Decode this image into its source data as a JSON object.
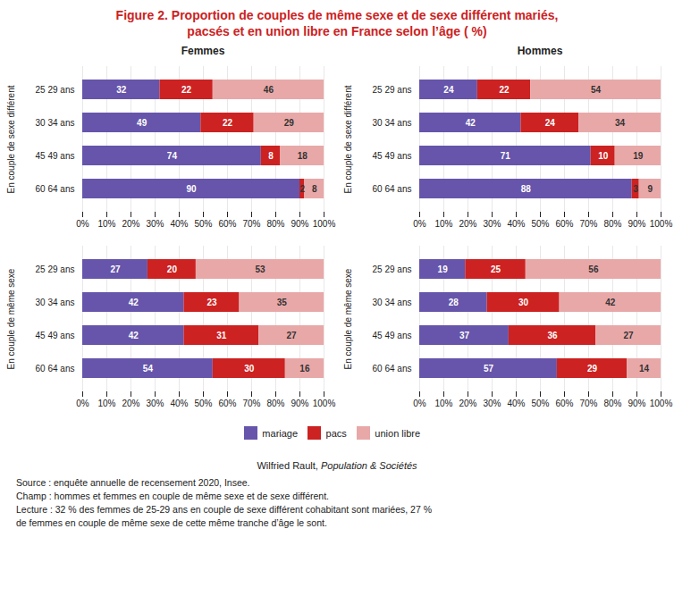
{
  "title": "Figure 2. Proportion de couples de même sexe et de sexe différent mariés,\npacsés et en union libre en France selon l’âge ( %)",
  "chart_data": [
    {
      "type": "bar",
      "orientation": "horizontal",
      "stacked": true,
      "title": "Femmes",
      "ylabel": "En couple de sexe différent",
      "categories": [
        "25 29 ans",
        "30 34 ans",
        "45 49 ans",
        "60 64 ans"
      ],
      "series": [
        {
          "name": "mariage",
          "color": "#6655aa",
          "values": [
            32,
            49,
            74,
            90
          ]
        },
        {
          "name": "pacs",
          "color": "#cc2222",
          "values": [
            22,
            22,
            8,
            2
          ]
        },
        {
          "name": "union libre",
          "color": "#e8a8a8",
          "values": [
            46,
            29,
            18,
            8
          ]
        }
      ],
      "xlim": [
        0,
        100
      ],
      "xticks": [
        {
          "value": 0,
          "label": "0%"
        },
        {
          "value": 10,
          "label": "10%"
        },
        {
          "value": 20,
          "label": "20%"
        },
        {
          "value": 30,
          "label": "30%"
        },
        {
          "value": 40,
          "label": "40%"
        },
        {
          "value": 50,
          "label": "50%"
        },
        {
          "value": 60,
          "label": "60%"
        },
        {
          "value": 70,
          "label": "70%"
        },
        {
          "value": 80,
          "label": "80%"
        },
        {
          "value": 90,
          "label": "90%"
        },
        {
          "value": 100,
          "label": "100%"
        }
      ],
      "grid": true,
      "data_labels": true
    },
    {
      "type": "bar",
      "orientation": "horizontal",
      "stacked": true,
      "title": "Hommes",
      "ylabel": "En couple de sexe différent",
      "categories": [
        "25 29 ans",
        "30 34 ans",
        "45 49 ans",
        "60 64 ans"
      ],
      "series": [
        {
          "name": "mariage",
          "color": "#6655aa",
          "values": [
            24,
            42,
            71,
            88
          ]
        },
        {
          "name": "pacs",
          "color": "#cc2222",
          "values": [
            22,
            24,
            10,
            3
          ]
        },
        {
          "name": "union libre",
          "color": "#e8a8a8",
          "values": [
            54,
            34,
            19,
            9
          ]
        }
      ],
      "xlim": [
        0,
        100
      ],
      "xticks": [
        {
          "value": 0,
          "label": "0%"
        },
        {
          "value": 10,
          "label": "10%"
        },
        {
          "value": 20,
          "label": "20%"
        },
        {
          "value": 30,
          "label": "30%"
        },
        {
          "value": 40,
          "label": "40%"
        },
        {
          "value": 50,
          "label": "50%"
        },
        {
          "value": 60,
          "label": "60%"
        },
        {
          "value": 70,
          "label": "70%"
        },
        {
          "value": 80,
          "label": "80%"
        },
        {
          "value": 90,
          "label": "90%"
        },
        {
          "value": 100,
          "label": "100%"
        }
      ],
      "grid": true,
      "data_labels": true
    },
    {
      "type": "bar",
      "orientation": "horizontal",
      "stacked": true,
      "ylabel": "En couple de même sexe",
      "categories": [
        "25 29 ans",
        "30 34 ans",
        "45 49 ans",
        "60 64 ans"
      ],
      "series": [
        {
          "name": "mariage",
          "color": "#6655aa",
          "values": [
            27,
            42,
            42,
            54
          ]
        },
        {
          "name": "pacs",
          "color": "#cc2222",
          "values": [
            20,
            23,
            31,
            30
          ]
        },
        {
          "name": "union libre",
          "color": "#e8a8a8",
          "values": [
            53,
            35,
            27,
            16
          ]
        }
      ],
      "xlim": [
        0,
        100
      ],
      "xticks": [
        {
          "value": 0,
          "label": "0%"
        },
        {
          "value": 10,
          "label": "10%"
        },
        {
          "value": 20,
          "label": "20%"
        },
        {
          "value": 30,
          "label": "30%"
        },
        {
          "value": 40,
          "label": "40%"
        },
        {
          "value": 50,
          "label": "50%"
        },
        {
          "value": 60,
          "label": "60%"
        },
        {
          "value": 70,
          "label": "70%"
        },
        {
          "value": 80,
          "label": "80%"
        },
        {
          "value": 90,
          "label": "90%"
        },
        {
          "value": 100,
          "label": "100%"
        }
      ],
      "grid": true,
      "data_labels": true
    },
    {
      "type": "bar",
      "orientation": "horizontal",
      "stacked": true,
      "ylabel": "En couple de même sexe",
      "categories": [
        "25 29 ans",
        "30 34 ans",
        "45 49 ans",
        "60 64 ans"
      ],
      "series": [
        {
          "name": "mariage",
          "color": "#6655aa",
          "values": [
            19,
            28,
            37,
            57
          ]
        },
        {
          "name": "pacs",
          "color": "#cc2222",
          "values": [
            25,
            30,
            36,
            29
          ]
        },
        {
          "name": "union libre",
          "color": "#e8a8a8",
          "values": [
            56,
            42,
            27,
            14
          ]
        }
      ],
      "xlim": [
        0,
        100
      ],
      "xticks": [
        {
          "value": 0,
          "label": "0%"
        },
        {
          "value": 10,
          "label": "10%"
        },
        {
          "value": 20,
          "label": "20%"
        },
        {
          "value": 30,
          "label": "30%"
        },
        {
          "value": 40,
          "label": "40%"
        },
        {
          "value": 50,
          "label": "50%"
        },
        {
          "value": 60,
          "label": "60%"
        },
        {
          "value": 70,
          "label": "70%"
        },
        {
          "value": 80,
          "label": "80%"
        },
        {
          "value": 90,
          "label": "90%"
        },
        {
          "value": 100,
          "label": "100%"
        }
      ],
      "grid": true,
      "data_labels": true,
      "legend": "bottom"
    }
  ],
  "annotations": [
    "Wilfried Rault, ",
    "Population & Sociétés",
    "Source : enquête annuelle de recensement 2020, Insee.",
    "Champ : hommes et femmes en couple de même sexe et de sexe différent.",
    "Lecture : 32 % des femmes de 25-29 ans en couple de sexe différent cohabitant sont mariées, 27 %",
    "de femmes en couple de même sexe de cette même tranche d’âge le sont."
  ]
}
